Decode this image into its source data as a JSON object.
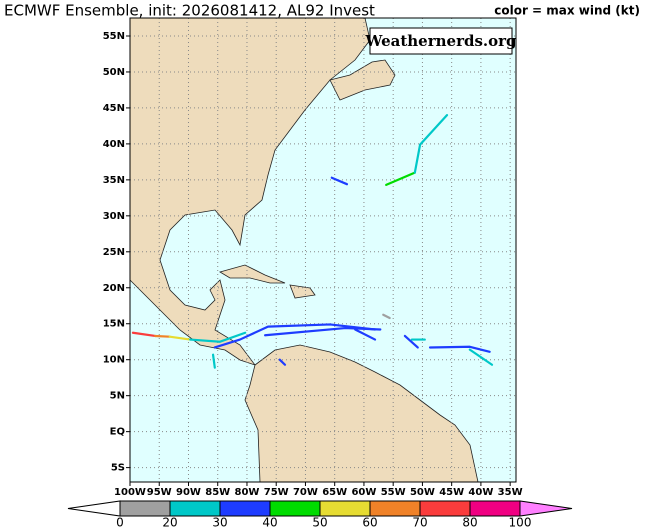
{
  "title": "ECMWF Ensemble, init: 2026081412, AL92 Invest",
  "legend_note": "color = max wind (kt)",
  "watermark": "Weathernerds.org",
  "map": {
    "lonlim": [
      -100,
      -34
    ],
    "latlim": [
      -7,
      57.5
    ],
    "lon_ticks": [
      {
        "value": -100,
        "label": "100W"
      },
      {
        "value": -95,
        "label": "95W"
      },
      {
        "value": -90,
        "label": "90W"
      },
      {
        "value": -85,
        "label": "85W"
      },
      {
        "value": -80,
        "label": "80W"
      },
      {
        "value": -75,
        "label": "75W"
      },
      {
        "value": -70,
        "label": "70W"
      },
      {
        "value": -65,
        "label": "65W"
      },
      {
        "value": -60,
        "label": "60W"
      },
      {
        "value": -55,
        "label": "55W"
      },
      {
        "value": -50,
        "label": "50W"
      },
      {
        "value": -45,
        "label": "45W"
      },
      {
        "value": -40,
        "label": "40W"
      },
      {
        "value": -35,
        "label": "35W"
      }
    ],
    "lat_ticks": [
      {
        "value": 55,
        "label": "55N"
      },
      {
        "value": 50,
        "label": "50N"
      },
      {
        "value": 45,
        "label": "45N"
      },
      {
        "value": 40,
        "label": "40N"
      },
      {
        "value": 35,
        "label": "35N"
      },
      {
        "value": 30,
        "label": "30N"
      },
      {
        "value": 25,
        "label": "25N"
      },
      {
        "value": 20,
        "label": "20N"
      },
      {
        "value": 15,
        "label": "15N"
      },
      {
        "value": 10,
        "label": "10N"
      },
      {
        "value": 5,
        "label": "5N"
      },
      {
        "value": 0,
        "label": "EQ"
      },
      {
        "value": -5,
        "label": "5S"
      }
    ],
    "tracks": [
      {
        "color": "#00dc00",
        "lon": [
          -56.2,
          -51.3
        ],
        "lat": [
          34.3,
          36.0
        ]
      },
      {
        "color": "#00c8c8",
        "lon": [
          -51.3,
          -50.4,
          -45.8
        ],
        "lat": [
          36.0,
          39.9,
          44.0
        ]
      },
      {
        "color": "#1e3cff",
        "lon": [
          -65.5,
          -62.9
        ],
        "lat": [
          35.3,
          34.4
        ]
      },
      {
        "color": "#1e3cff",
        "lon": [
          -58.1,
          -65.8,
          -76.4,
          -81.2,
          -85.5
        ],
        "lat": [
          14.2,
          14.9,
          14.6,
          12.8,
          11.7
        ]
      },
      {
        "color": "#1e3cff",
        "lon": [
          -76.9,
          -63.2,
          -57.2
        ],
        "lat": [
          13.4,
          14.4,
          14.2
        ]
      },
      {
        "color": "#fa3c3c",
        "lon": [
          -99.5,
          -95.7
        ],
        "lat": [
          13.75,
          13.3
        ]
      },
      {
        "color": "#f08228",
        "lon": [
          -95.7,
          -93.2
        ],
        "lat": [
          13.3,
          13.2
        ]
      },
      {
        "color": "#e6dc32",
        "lon": [
          -93.2,
          -89.7
        ],
        "lat": [
          13.2,
          12.8
        ]
      },
      {
        "color": "#00c8c8",
        "lon": [
          -89.7,
          -84.6,
          -80.3
        ],
        "lat": [
          12.8,
          12.5,
          13.75
        ]
      },
      {
        "color": "#00c8c8",
        "lon": [
          -85.8,
          -85.5
        ],
        "lat": [
          10.7,
          8.9
        ]
      },
      {
        "color": "#1e3cff",
        "lon": [
          -61.5,
          -58.1
        ],
        "lat": [
          14.2,
          12.8
        ]
      },
      {
        "color": "#1e3cff",
        "lon": [
          -53.0,
          -50.8
        ],
        "lat": [
          13.3,
          11.7
        ]
      },
      {
        "color": "#00c8c8",
        "lon": [
          -51.8,
          -49.6
        ],
        "lat": [
          12.8,
          12.8
        ]
      },
      {
        "color": "#1e3cff",
        "lon": [
          -48.7,
          -41.9,
          -38.5
        ],
        "lat": [
          11.7,
          11.8,
          11.1
        ]
      },
      {
        "color": "#00c8c8",
        "lon": [
          -41.9,
          -38.1
        ],
        "lat": [
          11.4,
          9.3
        ]
      },
      {
        "color": "#a0a0a0",
        "lon": [
          -56.7,
          -55.6
        ],
        "lat": [
          16.25,
          15.8
        ]
      },
      {
        "color": "#1e3cff",
        "lon": [
          -74.4,
          -73.5
        ],
        "lat": [
          10.0,
          9.3
        ]
      }
    ]
  },
  "colorbar": {
    "bounds": [
      0,
      20,
      30,
      40,
      50,
      60,
      70,
      80,
      100
    ],
    "colors": [
      "#a0a0a0",
      "#00c8c8",
      "#1e3cff",
      "#00dc00",
      "#e6dc32",
      "#f08228",
      "#fa3c3c",
      "#f00082"
    ],
    "under_color": "#ffffff",
    "over_color": "#ff80ff"
  }
}
